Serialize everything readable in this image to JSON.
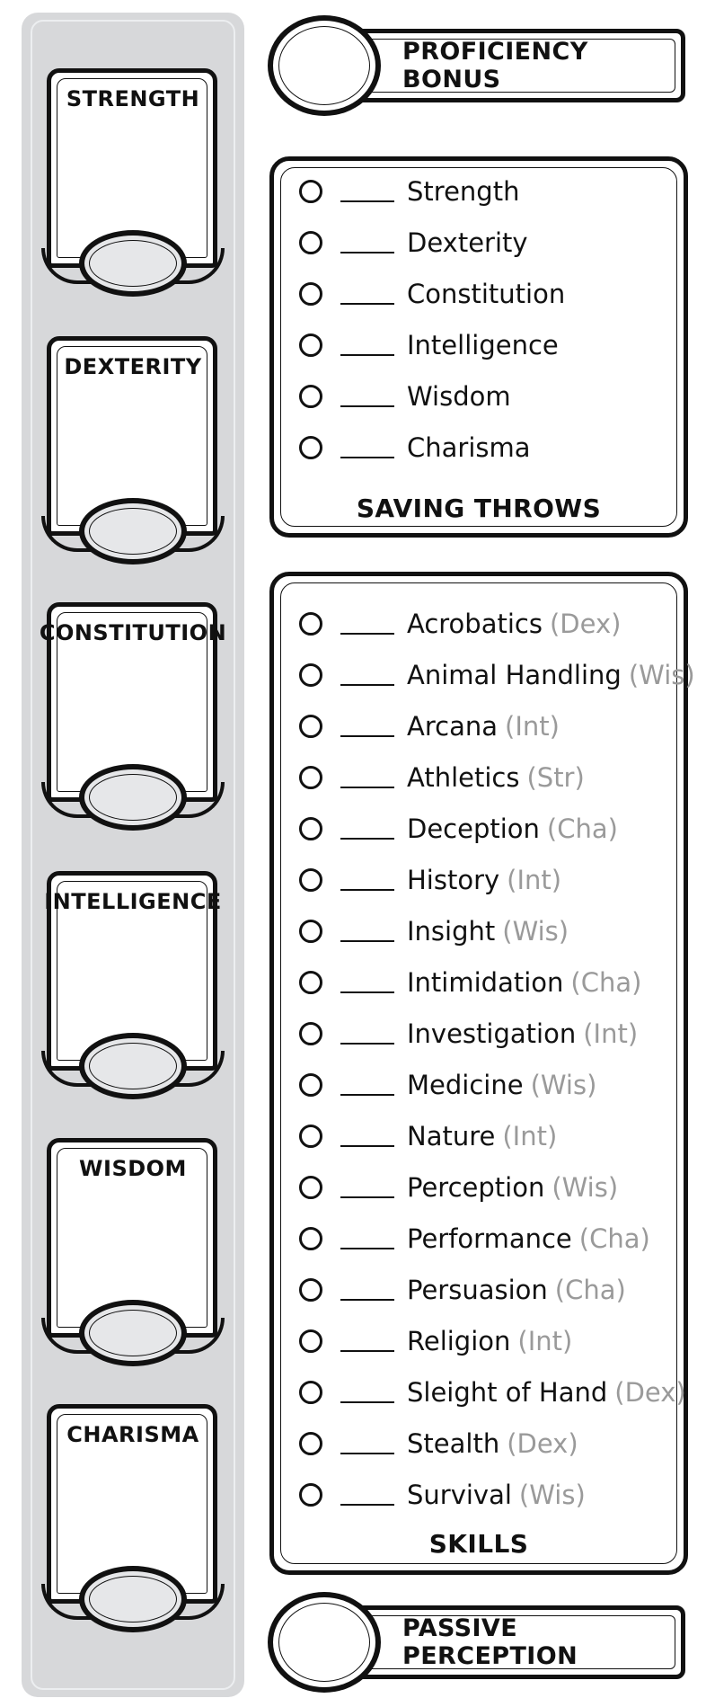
{
  "ability_scores": [
    {
      "name": "STRENGTH"
    },
    {
      "name": "DEXTERITY"
    },
    {
      "name": "CONSTITUTION"
    },
    {
      "name": "INTELLIGENCE"
    },
    {
      "name": "WISDOM"
    },
    {
      "name": "CHARISMA"
    }
  ],
  "proficiency_bonus": {
    "title": "PROFICIENCY BONUS"
  },
  "saving_throws": {
    "title": "SAVING THROWS",
    "items": [
      {
        "label": "Strength"
      },
      {
        "label": "Dexterity"
      },
      {
        "label": "Constitution"
      },
      {
        "label": "Intelligence"
      },
      {
        "label": "Wisdom"
      },
      {
        "label": "Charisma"
      }
    ]
  },
  "skills": {
    "title": "SKILLS",
    "items": [
      {
        "label": "Acrobatics",
        "ability": "(Dex)"
      },
      {
        "label": "Animal Handling",
        "ability": "(Wis)"
      },
      {
        "label": "Arcana",
        "ability": "(Int)"
      },
      {
        "label": "Athletics",
        "ability": "(Str)"
      },
      {
        "label": "Deception",
        "ability": "(Cha)"
      },
      {
        "label": "History",
        "ability": "(Int)"
      },
      {
        "label": "Insight",
        "ability": "(Wis)"
      },
      {
        "label": "Intimidation",
        "ability": "(Cha)"
      },
      {
        "label": "Investigation",
        "ability": "(Int)"
      },
      {
        "label": "Medicine",
        "ability": "(Wis)"
      },
      {
        "label": "Nature",
        "ability": "(Int)"
      },
      {
        "label": "Perception",
        "ability": "(Wis)"
      },
      {
        "label": "Performance",
        "ability": "(Cha)"
      },
      {
        "label": "Persuasion",
        "ability": "(Cha)"
      },
      {
        "label": "Religion",
        "ability": "(Int)"
      },
      {
        "label": "Sleight of Hand",
        "ability": "(Dex)"
      },
      {
        "label": "Stealth",
        "ability": "(Dex)"
      },
      {
        "label": "Survival",
        "ability": "(Wis)"
      }
    ]
  },
  "passive_perception": {
    "title": "PASSIVE PERCEPTION"
  }
}
